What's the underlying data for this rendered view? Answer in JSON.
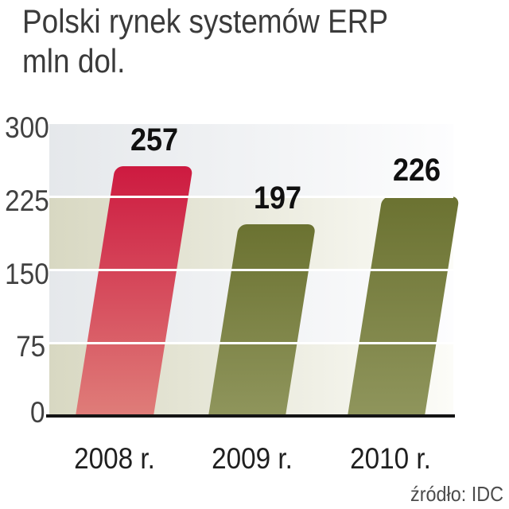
{
  "title": {
    "line1": "Polski rynek systemów ERP",
    "line2": "mln dol."
  },
  "source_label": "źródło: IDC",
  "chart_data": {
    "type": "bar",
    "title": "Polski rynek systemów ERP",
    "unit_label": "mln dol.",
    "categories": [
      "2008 r.",
      "2009 r.",
      "2010 r."
    ],
    "values": [
      257,
      197,
      226
    ],
    "value_labels": [
      "257",
      "197",
      "226"
    ],
    "yticks": [
      300,
      225,
      150,
      75,
      0
    ],
    "ylim": [
      0,
      300
    ],
    "grid": "horizontal white lines over bars",
    "legend": "none",
    "source": "źródło: IDC",
    "colors": {
      "bar_2008_top": "#cd1a40",
      "bar_2008_bottom": "#df7d79",
      "bar_2009_2010_top": "#6b7231",
      "bar_2009_2010_bottom": "#8f955c",
      "band_gray": "#e5e8eb",
      "band_beige": "#d8d8c2",
      "axis_line": "#141414"
    }
  }
}
